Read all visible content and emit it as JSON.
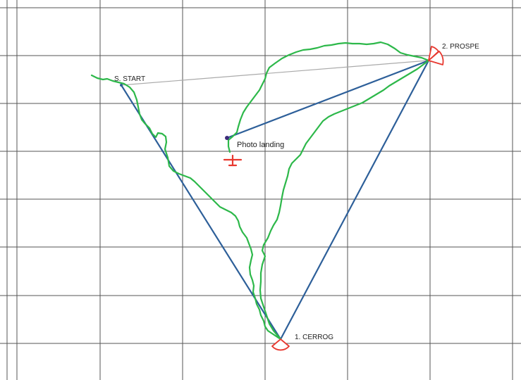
{
  "map": {
    "colors": {
      "grid": "#555555",
      "task_leg": "#2d5f99",
      "gps_track": "#2db84a",
      "start_line": "#aaaaaa",
      "sector": "#e8382f",
      "landing_marker": "#e8382f",
      "landing_dot": "#3d2a7a"
    },
    "labels": {
      "start": "S. START",
      "turnpoint_1": "1. CERROG",
      "turnpoint_2": "2. PROSPE",
      "landing": "Photo landing"
    },
    "icons": {
      "landing": "plane-icon",
      "sector": "observation-sector-icon"
    }
  }
}
